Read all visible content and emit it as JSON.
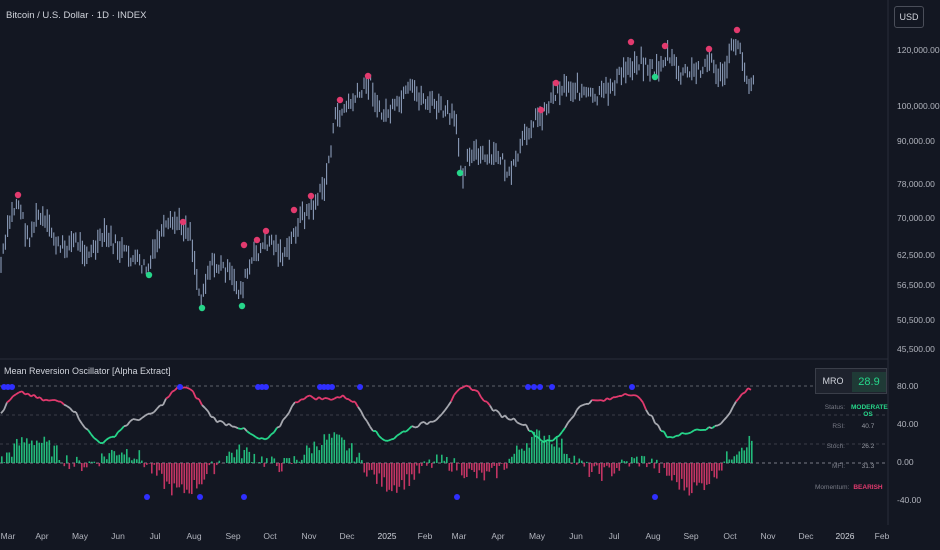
{
  "header": {
    "title": "Bitcoin / U.S. Dollar · 1D · INDEX",
    "currency_button": "USD"
  },
  "indicator": {
    "title": "Mean Reversion Oscillator [Alpha Extract]"
  },
  "price_axis": {
    "labels": [
      "120,000.00",
      "100,000.00",
      "90,000.00",
      "78,000.00",
      "70,000.00",
      "62,500.00",
      "56,500.00",
      "50,500.00",
      "45,500.00"
    ]
  },
  "osc_axis": {
    "labels": [
      "80.00",
      "40.00",
      "0.00",
      "-40.00"
    ]
  },
  "time_axis": {
    "labels": [
      "Mar",
      "Apr",
      "May",
      "Jun",
      "Jul",
      "Aug",
      "Sep",
      "Oct",
      "Nov",
      "Dec",
      "2025",
      "Feb",
      "Mar",
      "Apr",
      "May",
      "Jun",
      "Jul",
      "Aug",
      "Sep",
      "Oct",
      "Nov",
      "Dec",
      "2026",
      "Feb"
    ]
  },
  "info_panel": {
    "mro_label": "MRO",
    "mro_value": "28.9",
    "rows": [
      {
        "label": "Status:",
        "value": "MODERATE OS",
        "color": "#26d68a"
      },
      {
        "label": "RSI:",
        "value": "40.7",
        "color": "#9598a1"
      },
      {
        "label": "Stoch:",
        "value": "26.2",
        "color": "#9598a1"
      },
      {
        "label": "MFI:",
        "value": "31.3",
        "color": "#9598a1"
      },
      {
        "label": "Momentum:",
        "value": "BEARISH",
        "color": "#e23a6e"
      }
    ]
  },
  "colors": {
    "background": "#131722",
    "candles": "#8a9bb8",
    "bull": "#26d68a",
    "bear": "#e23a6e",
    "extreme": "#2f2fff"
  }
}
